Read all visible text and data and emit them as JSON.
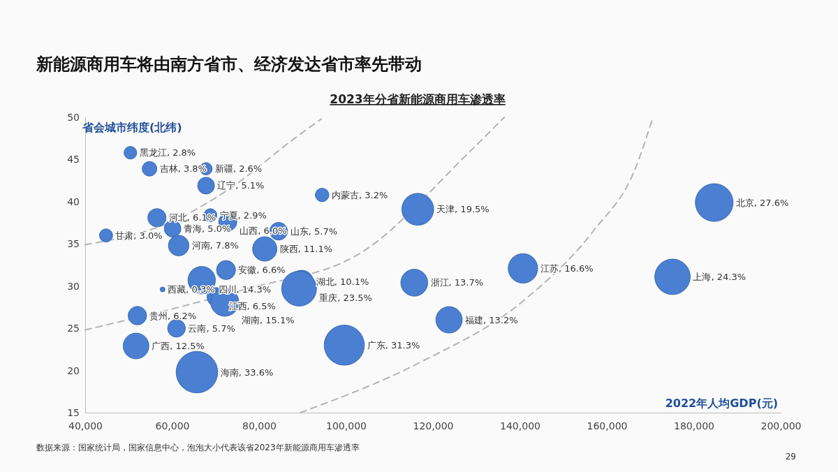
{
  "chart_data": {
    "type": "bubble",
    "title": "新能源商用车将由南方省市、经济发达省市率先带动",
    "subtitle": "2023年分省新能源商用车渗透率",
    "xlabel": "2022年人均GDP(元)",
    "ylabel": "省会城市纬度(北纬)",
    "xlim": [
      40000,
      200000
    ],
    "xticks": [
      {
        "value": 40000,
        "label": "40,000"
      },
      {
        "value": 60000,
        "label": "60,000"
      },
      {
        "value": 80000,
        "label": "80,000"
      },
      {
        "value": 100000,
        "label": "100,000"
      },
      {
        "value": 120000,
        "label": "120,000"
      },
      {
        "value": 140000,
        "label": "140,000"
      },
      {
        "value": 160000,
        "label": "160,000"
      },
      {
        "value": 180000,
        "label": "180,000"
      },
      {
        "value": 200000,
        "label": "200,000"
      }
    ],
    "ylim": [
      15,
      50
    ],
    "yticks": [
      15,
      20,
      25,
      30,
      35,
      40,
      45,
      50
    ],
    "grid": false,
    "series": [
      {
        "type": "line",
        "color": "#b4b4b4",
        "line_style": "dashed",
        "marker": "none",
        "x": [
          40000,
          60600,
          73400,
          87900,
          94300
        ],
        "values": [
          34.9,
          37.8,
          41.6,
          47.4,
          49.8
        ]
      },
      {
        "type": "line",
        "color": "#b4b4b4",
        "line_style": "dashed",
        "marker": "none",
        "x": [
          40000,
          76600,
          103900,
          116800,
          128000,
          136400
        ],
        "values": [
          24.8,
          29.6,
          34.1,
          null,
          45.7,
          50
        ]
      },
      {
        "type": "line",
        "color": "#b4b4b4",
        "line_style": "dashed",
        "marker": "none",
        "x": [
          89500,
          116800,
          140900,
          157000,
          166600,
          170600
        ],
        "values": [
          15,
          20.9,
          28.3,
          36.6,
          44.0,
          50
        ]
      },
      {
        "color": "#4a7fd2",
        "marker": "circle",
        "x": [
          50400,
          54800,
          67800,
          67800,
          94500,
          116500,
          184700,
          56500,
          68800,
          72800,
          84500,
          44800,
          60100,
          61500,
          81300,
          72400,
          66800,
          57800,
          89800,
          89200,
          70200,
          72100,
          115700,
          140700,
          175100,
          123700,
          52000,
          61000,
          51700,
          99600,
          65700
        ],
        "values": [
          45.8,
          43.9,
          43.9,
          41.9,
          40.8,
          39.1,
          39.9,
          38.1,
          38.4,
          37.6,
          36.5,
          36.0,
          36.8,
          34.8,
          34.4,
          31.9,
          30.7,
          29.6,
          30.5,
          29.7,
          28.7,
          28.1,
          30.4,
          32.1,
          31.1,
          26.0,
          26.5,
          25.0,
          22.9,
          23.0,
          19.8
        ],
        "sizes": [
          2.8,
          3.8,
          2.6,
          5.1,
          3.2,
          19.5,
          27.6,
          6.1,
          2.9,
          6.0,
          5.7,
          3.0,
          5.0,
          7.8,
          11.1,
          6.6,
          14.3,
          0.3,
          10.1,
          23.5,
          6.5,
          15.1,
          13.7,
          16.6,
          24.3,
          13.2,
          6.2,
          5.7,
          12.5,
          31.3,
          33.6
        ],
        "value_labels": [
          "黑龙江, 2.8%",
          "吉林, 3.8%",
          "新疆, 2.6%",
          "辽宁, 5.1%",
          "内蒙古, 3.2%",
          "天津, 19.5%",
          "北京, 27.6%",
          "河北, 6.1%",
          "宁夏, 2.9%",
          "山西, 6.0%",
          "山东, 5.7%",
          "甘肃, 3.0%",
          "青海, 5.0%",
          "河南, 7.8%",
          "陕西, 11.1%",
          "安徽, 6.6%",
          "四川, 14.3%",
          "西藏, 0.3%",
          "湖北, 10.1%",
          "重庆, 23.5%",
          "江西, 6.5%",
          "湖南, 15.1%",
          "浙江, 13.7%",
          "江苏, 16.6%",
          "上海, 24.3%",
          "福建, 13.2%",
          "贵州, 6.2%",
          "云南, 5.7%",
          "广西, 12.5%",
          "广东, 31.3%",
          "海南, 33.6%"
        ]
      }
    ],
    "annotations": [
      "数据来源：国家统计局，国家信息中心，泡泡大小代表该省2023年新能源商用车渗透率",
      "29"
    ]
  }
}
